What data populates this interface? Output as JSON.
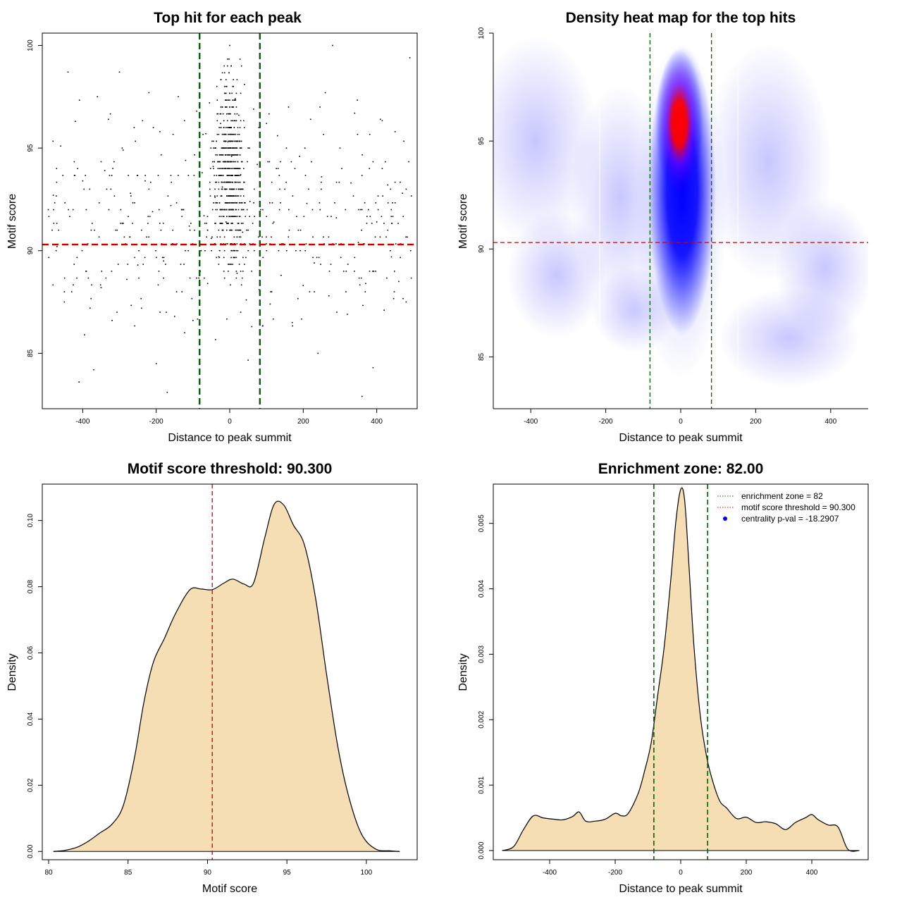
{
  "chart_data": [
    {
      "type": "scatter",
      "title": "Top hit for each peak",
      "xlabel": "Distance to peak summit",
      "ylabel": "Motif score",
      "xlim": [
        -510,
        510
      ],
      "ylim": [
        82.3,
        100.6
      ],
      "x_ticks": [
        "-400",
        "-200",
        "0",
        "200",
        "400"
      ],
      "y_ticks": [
        "85",
        "90",
        "95",
        "100"
      ],
      "x_tick_values": [
        -400,
        -200,
        0,
        200,
        400
      ],
      "y_tick_values": [
        85,
        90,
        95,
        100
      ],
      "point_color": "#000000",
      "reference_lines": {
        "vertical": [
          -82,
          82
        ],
        "horizontal": [
          90.3
        ]
      },
      "vline_color": "#006400",
      "hline_color": "#cc0000",
      "points_summary": {
        "count_approx": 1100,
        "concentrated_x_range": [
          -82,
          82
        ],
        "y_range": [
          82.9,
          100
        ]
      },
      "points": [
        [
          -480,
          92.7
        ],
        [
          -470,
          90.2
        ],
        [
          -460,
          95.1
        ],
        [
          -450,
          87.5
        ],
        [
          -440,
          98.7
        ],
        [
          -420,
          96.3
        ],
        [
          -410,
          83.6
        ],
        [
          -400,
          93.4
        ],
        [
          -395,
          85.9
        ],
        [
          -390,
          89.0
        ],
        [
          -380,
          87.2
        ],
        [
          -370,
          84.2
        ],
        [
          -360,
          97.5
        ],
        [
          -350,
          88.2
        ],
        [
          -340,
          93.9
        ],
        [
          -330,
          96.4
        ],
        [
          -320,
          86.6
        ],
        [
          -310,
          91.0
        ],
        [
          -300,
          98.7
        ],
        [
          -290,
          94.9
        ],
        [
          -280,
          88.6
        ],
        [
          -270,
          92.8
        ],
        [
          -260,
          96.0
        ],
        [
          -250,
          89.3
        ],
        [
          -240,
          87.2
        ],
        [
          -230,
          93.4
        ],
        [
          -220,
          97.7
        ],
        [
          -210,
          91.9
        ],
        [
          -200,
          84.5
        ],
        [
          -190,
          95.8
        ],
        [
          -180,
          89.5
        ],
        [
          -170,
          83.1
        ],
        [
          -160,
          92.2
        ],
        [
          -150,
          86.8
        ],
        [
          -140,
          97.5
        ],
        [
          -130,
          88.0
        ],
        [
          -120,
          94.4
        ],
        [
          -110,
          91.2
        ],
        [
          -100,
          86.6
        ],
        [
          -90,
          96.8
        ],
        [
          -80,
          89.0
        ],
        [
          -75,
          93.8
        ],
        [
          -70,
          91.7
        ],
        [
          -65,
          95.7
        ],
        [
          -60,
          88.4
        ],
        [
          -55,
          97.2
        ],
        [
          -50,
          90.6
        ],
        [
          -45,
          94.1
        ],
        [
          -40,
          92.6
        ],
        [
          -35,
          98.0
        ],
        [
          -30,
          89.7
        ],
        [
          -25,
          96.2
        ],
        [
          -20,
          93.1
        ],
        [
          -15,
          99.0
        ],
        [
          -10,
          91.4
        ],
        [
          -5,
          95.3
        ],
        [
          0,
          100.0
        ],
        [
          5,
          94.6
        ],
        [
          10,
          92.0
        ],
        [
          15,
          97.4
        ],
        [
          20,
          88.9
        ],
        [
          25,
          96.6
        ],
        [
          30,
          93.7
        ],
        [
          35,
          90.9
        ],
        [
          40,
          98.1
        ],
        [
          45,
          87.6
        ],
        [
          50,
          95.0
        ],
        [
          55,
          92.4
        ],
        [
          60,
          86.3
        ],
        [
          65,
          96.9
        ],
        [
          70,
          90.3
        ],
        [
          75,
          94.2
        ],
        [
          80,
          88.1
        ],
        [
          90,
          92.0
        ],
        [
          100,
          96.2
        ],
        [
          110,
          87.4
        ],
        [
          120,
          91.4
        ],
        [
          130,
          95.6
        ],
        [
          140,
          88.8
        ],
        [
          150,
          93.0
        ],
        [
          160,
          97.0
        ],
        [
          170,
          86.5
        ],
        [
          180,
          90.0
        ],
        [
          190,
          94.6
        ],
        [
          200,
          88.3
        ],
        [
          210,
          92.3
        ],
        [
          220,
          96.4
        ],
        [
          230,
          89.4
        ],
        [
          240,
          85.0
        ],
        [
          250,
          93.6
        ],
        [
          260,
          97.7
        ],
        [
          270,
          87.8
        ],
        [
          280,
          100.0
        ],
        [
          290,
          91.6
        ],
        [
          300,
          95.0
        ],
        [
          310,
          89.0
        ],
        [
          320,
          86.9
        ],
        [
          330,
          93.3
        ],
        [
          340,
          96.7
        ],
        [
          350,
          90.4
        ],
        [
          360,
          82.9
        ],
        [
          370,
          88.4
        ],
        [
          380,
          94.0
        ],
        [
          390,
          84.3
        ],
        [
          400,
          91.4
        ],
        [
          410,
          96.4
        ],
        [
          420,
          87.1
        ],
        [
          430,
          93.2
        ],
        [
          440,
          89.7
        ],
        [
          450,
          95.8
        ],
        [
          460,
          88.5
        ],
        [
          470,
          92.8
        ],
        [
          480,
          87.5
        ],
        [
          490,
          99.4
        ]
      ]
    },
    {
      "type": "heatmap",
      "title": "Density heat map for the top hits",
      "xlabel": "Distance to peak summit",
      "ylabel": "Motif score",
      "xlim": [
        -500,
        500
      ],
      "ylim": [
        82.6,
        100
      ],
      "x_ticks": [
        "-400",
        "-200",
        "0",
        "200",
        "400"
      ],
      "y_ticks": [
        "85",
        "90",
        "95",
        "100"
      ],
      "x_tick_values": [
        -400,
        -200,
        0,
        200,
        400
      ],
      "y_tick_values": [
        85,
        90,
        95,
        100
      ],
      "color_scale": [
        "#ffffff",
        "#0000ff",
        "#ff0000"
      ],
      "reference_lines": {
        "vertical": [
          -82,
          82
        ],
        "horizontal": [
          90.3
        ]
      },
      "vline_color": "#006400",
      "hline_color": "#cc0000",
      "hotspot": {
        "x": 0,
        "y": 95.2
      }
    },
    {
      "type": "area",
      "title": "Motif score threshold: 90.300",
      "xlabel": "Motif score",
      "ylabel": "Density",
      "xlim": [
        79.6,
        103.2
      ],
      "ylim": [
        -0.0025,
        0.111
      ],
      "x_ticks": [
        "80",
        "85",
        "90",
        "95",
        "100"
      ],
      "y_ticks": [
        "0.00",
        "0.02",
        "0.04",
        "0.06",
        "0.08",
        "0.10"
      ],
      "x_tick_values": [
        80,
        85,
        90,
        95,
        100
      ],
      "y_tick_values": [
        0,
        0.02,
        0.04,
        0.06,
        0.08,
        0.1
      ],
      "fill_color": "#f5deb3",
      "reference_lines": {
        "vertical": [
          90.3
        ]
      },
      "vline_color": "#cc0000",
      "x": [
        80.3,
        81.0,
        81.8,
        82.5,
        83.2,
        84.0,
        84.7,
        85.4,
        86.0,
        86.6,
        87.3,
        88.0,
        88.9,
        89.6,
        90.3,
        91.0,
        91.6,
        92.3,
        92.9,
        93.6,
        94.2,
        94.8,
        95.4,
        96.1,
        96.8,
        97.5,
        98.2,
        98.9,
        99.7,
        100.6,
        101.5,
        102.1
      ],
      "y": [
        0.0,
        0.0003,
        0.0013,
        0.0031,
        0.0055,
        0.0083,
        0.0139,
        0.0282,
        0.0452,
        0.0573,
        0.0645,
        0.072,
        0.0791,
        0.0793,
        0.0791,
        0.081,
        0.0823,
        0.0808,
        0.0811,
        0.0947,
        0.1049,
        0.1047,
        0.0987,
        0.0927,
        0.0767,
        0.0534,
        0.0318,
        0.0164,
        0.0052,
        0.0007,
        0.0002,
        0.0
      ]
    },
    {
      "type": "area",
      "title": "Enrichment zone: 82.00",
      "xlabel": "Distance to peak summit",
      "ylabel": "Density",
      "xlim": [
        -572,
        572
      ],
      "ylim": [
        -0.00014,
        0.0056
      ],
      "x_ticks": [
        "-400",
        "-200",
        "0",
        "200",
        "400"
      ],
      "y_ticks": [
        "0.000",
        "0.001",
        "0.002",
        "0.003",
        "0.004",
        "0.005"
      ],
      "x_tick_values": [
        -400,
        -200,
        0,
        200,
        400
      ],
      "y_tick_values": [
        0,
        0.001,
        0.002,
        0.003,
        0.004,
        0.005
      ],
      "fill_color": "#f5deb3",
      "reference_lines": {
        "vertical": [
          -82,
          82
        ]
      },
      "vline_color": "#006400",
      "x": [
        -545,
        -510,
        -480,
        -450,
        -420,
        -390,
        -360,
        -330,
        -310,
        -290,
        -260,
        -230,
        -200,
        -180,
        -160,
        -130,
        -110,
        -90,
        -70,
        -50,
        -30,
        -15,
        0,
        12,
        25,
        40,
        60,
        80,
        100,
        120,
        140,
        170,
        200,
        230,
        260,
        290,
        320,
        350,
        380,
        400,
        420,
        450,
        480,
        510,
        545
      ],
      "y": [
        0.0,
        6e-05,
        0.00032,
        0.00053,
        0.0005,
        0.00048,
        0.00047,
        0.00052,
        0.00059,
        0.00045,
        0.00045,
        0.00048,
        0.00057,
        0.00053,
        0.00057,
        0.00087,
        0.00122,
        0.00165,
        0.00238,
        0.00313,
        0.00415,
        0.00502,
        0.00552,
        0.00535,
        0.00437,
        0.00315,
        0.00205,
        0.00141,
        0.00102,
        0.00075,
        0.00065,
        0.00049,
        0.00051,
        0.00043,
        0.00044,
        0.00041,
        0.00032,
        0.00043,
        0.0005,
        0.00055,
        0.00047,
        0.00039,
        0.00036,
        2e-05,
        0.0
      ],
      "legend": {
        "position": "top-right",
        "entries": [
          {
            "label": "enrichment zone = 82",
            "style": "dotted-line",
            "color": "#006400"
          },
          {
            "label": "motif score threshold = 90.300",
            "style": "dotted-line",
            "color": "#cc0000"
          },
          {
            "label": "centrality p-val = -18.2907",
            "style": "dot",
            "color": "#0000ff"
          }
        ]
      }
    }
  ]
}
